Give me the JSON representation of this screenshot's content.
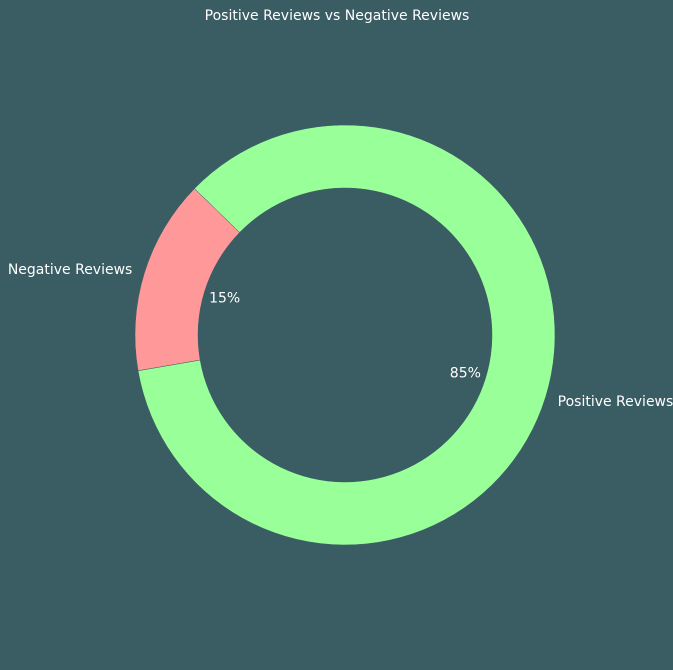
{
  "chart_data": {
    "type": "pie",
    "donut": true,
    "title": "Positive Reviews vs Negative Reviews",
    "categories": [
      "Positive Reviews",
      "Negative Reviews"
    ],
    "values": [
      85,
      15
    ],
    "value_labels": [
      "85%",
      "15%"
    ],
    "colors": [
      "#99ff99",
      "#ff9999"
    ],
    "background": "#3a5c63",
    "legend": "none"
  }
}
